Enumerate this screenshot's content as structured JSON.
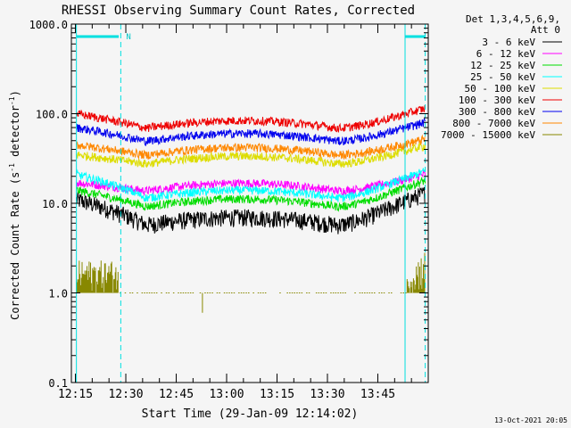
{
  "chart_data": {
    "type": "line",
    "title": "RHESSI Observing Summary Count Rates, Corrected",
    "xlabel": "Start Time (29-Jan-09 12:14:02)",
    "ylabel": "Corrected Count Rate (s",
    "ylabel_sup1": "-1",
    "ylabel_mid": " detector",
    "ylabel_sup2": "-1",
    "ylabel_end": ")",
    "ylog": true,
    "ylim": [
      0.1,
      1000
    ],
    "xlim_minutes": [
      12.23,
      14.01
    ],
    "x_ticks": [
      {
        "label": "12:15",
        "hour": 12.25
      },
      {
        "label": "12:30",
        "hour": 12.5
      },
      {
        "label": "12:45",
        "hour": 12.75
      },
      {
        "label": "13:00",
        "hour": 13.0
      },
      {
        "label": "13:15",
        "hour": 13.25
      },
      {
        "label": "13:30",
        "hour": 13.5
      },
      {
        "label": "13:45",
        "hour": 13.75
      }
    ],
    "y_ticks": [
      {
        "label": "0.1",
        "value": 0.1
      },
      {
        "label": "1.0",
        "value": 1
      },
      {
        "label": "10.0",
        "value": 10
      },
      {
        "label": "100.0",
        "value": 100
      },
      {
        "label": "1000.0",
        "value": 1000
      }
    ],
    "legend_header": [
      "Det 1,3,4,5,6,9,",
      "Att 0"
    ],
    "legend_placement": "right",
    "series": [
      {
        "name": "3 - 6 keV",
        "color": "#000000",
        "start": 11,
        "mid": 5,
        "end": 13
      },
      {
        "name": "6 - 12 keV",
        "color": "#ff00ff",
        "start": 17,
        "mid": 12,
        "end": 21
      },
      {
        "name": "12 - 25 keV",
        "color": "#00dd00",
        "start": 14,
        "mid": 8,
        "end": 18
      },
      {
        "name": "25 - 50 keV",
        "color": "#00ffff",
        "start": 21,
        "mid": 10,
        "end": 23
      },
      {
        "name": "50 - 100 keV",
        "color": "#dddd00",
        "start": 35,
        "mid": 24,
        "end": 44
      },
      {
        "name": "100 - 300 keV",
        "color": "#ee0000",
        "start": 100,
        "mid": 60,
        "end": 115
      },
      {
        "name": "300 - 800 keV",
        "color": "#0000ee",
        "start": 70,
        "mid": 43,
        "end": 80
      },
      {
        "name": "800 - 7000 keV",
        "color": "#ff8800",
        "start": 45,
        "mid": 30,
        "end": 52
      },
      {
        "name": "7000 - 15000 keV",
        "color": "#888800",
        "start": 2,
        "mid": 1,
        "end": 2.5
      }
    ],
    "markers": {
      "solid_lines_hour": [
        12.255,
        13.885
      ],
      "dashed_lines_hour": [
        12.475,
        13.985
      ],
      "night_bars_hour": [
        [
          12.255,
          12.465
        ],
        [
          13.885,
          13.985
        ]
      ],
      "night_label": "N"
    },
    "timestamp": "13-Oct-2021 20:05"
  }
}
